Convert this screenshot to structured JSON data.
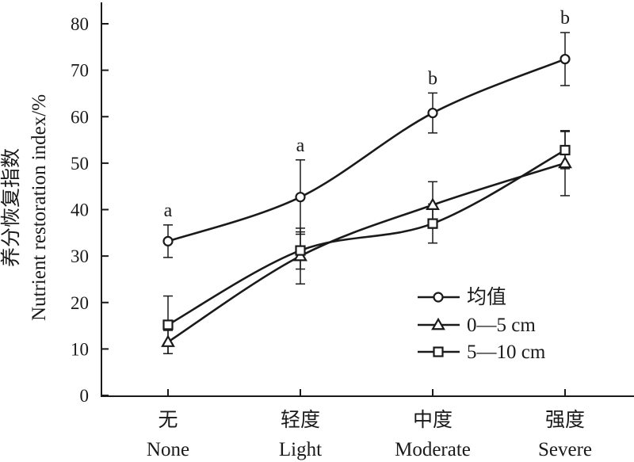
{
  "chart_data": {
    "type": "line",
    "ylabel_cn": "养分恢复指数",
    "ylabel_en": "Nutrient restoration index/%",
    "ylim": [
      0,
      85
    ],
    "yticks": [
      0,
      10,
      20,
      30,
      40,
      50,
      60,
      70,
      80
    ],
    "categories": [
      {
        "cn": "无",
        "en": "None"
      },
      {
        "cn": "轻度",
        "en": "Light"
      },
      {
        "cn": "中度",
        "en": "Moderate"
      },
      {
        "cn": "强度",
        "en": "Severe"
      }
    ],
    "series": [
      {
        "name": "均值",
        "marker": "circle",
        "values": [
          33.2,
          42.7,
          60.8,
          72.4
        ],
        "err": [
          3.5,
          8.0,
          4.3,
          5.7
        ]
      },
      {
        "name": "0—5 cm",
        "marker": "triangle",
        "values": [
          11.5,
          30.0,
          41.0,
          50.0
        ],
        "err": [
          2.5,
          6.0,
          5.0,
          7.0
        ]
      },
      {
        "name": "5—10 cm",
        "marker": "square",
        "values": [
          15.2,
          31.2,
          37.0,
          52.8
        ],
        "err": [
          6.2,
          4.0,
          4.2,
          4.0
        ]
      }
    ],
    "significance": [
      "a",
      "a",
      "b",
      "b"
    ],
    "grid": false,
    "legend_position": "bottom-right"
  }
}
